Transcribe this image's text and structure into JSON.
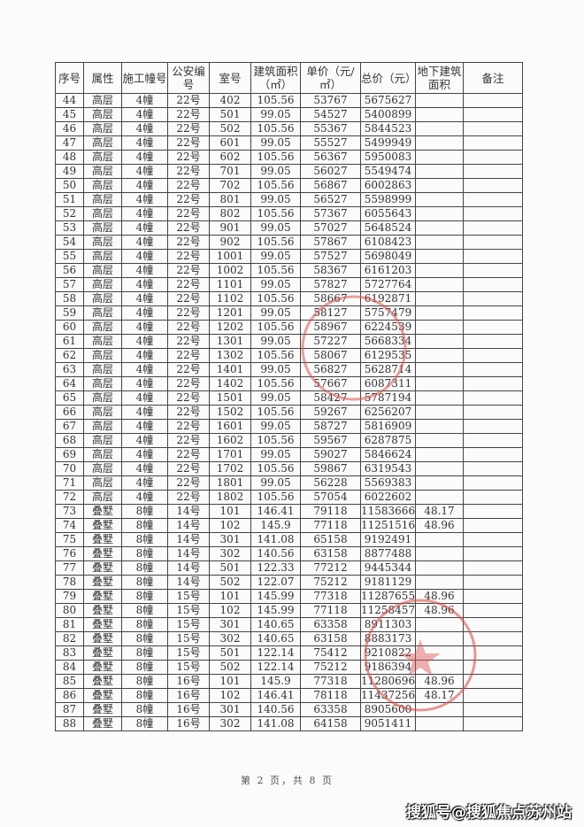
{
  "headers": [
    "序号",
    "属性",
    "施工幢号",
    "公安编号",
    "室号",
    "建筑面积（㎡）",
    "单价（元/㎡）",
    "总价（元）",
    "地下建筑面积",
    "备注"
  ],
  "rows": [
    [
      "44",
      "高层",
      "4幢",
      "22号",
      "402",
      "105.56",
      "53767",
      "5675627",
      "",
      ""
    ],
    [
      "45",
      "高层",
      "4幢",
      "22号",
      "501",
      "99.05",
      "54527",
      "5400899",
      "",
      ""
    ],
    [
      "46",
      "高层",
      "4幢",
      "22号",
      "502",
      "105.56",
      "55367",
      "5844523",
      "",
      ""
    ],
    [
      "47",
      "高层",
      "4幢",
      "22号",
      "601",
      "99.05",
      "55527",
      "5499949",
      "",
      ""
    ],
    [
      "48",
      "高层",
      "4幢",
      "22号",
      "602",
      "105.56",
      "56367",
      "5950083",
      "",
      ""
    ],
    [
      "49",
      "高层",
      "4幢",
      "22号",
      "701",
      "99.05",
      "56027",
      "5549474",
      "",
      ""
    ],
    [
      "50",
      "高层",
      "4幢",
      "22号",
      "702",
      "105.56",
      "56867",
      "6002863",
      "",
      ""
    ],
    [
      "51",
      "高层",
      "4幢",
      "22号",
      "801",
      "99.05",
      "56527",
      "5598999",
      "",
      ""
    ],
    [
      "52",
      "高层",
      "4幢",
      "22号",
      "802",
      "105.56",
      "57367",
      "6055643",
      "",
      ""
    ],
    [
      "53",
      "高层",
      "4幢",
      "22号",
      "901",
      "99.05",
      "57027",
      "5648524",
      "",
      ""
    ],
    [
      "54",
      "高层",
      "4幢",
      "22号",
      "902",
      "105.56",
      "57867",
      "6108423",
      "",
      ""
    ],
    [
      "55",
      "高层",
      "4幢",
      "22号",
      "1001",
      "99.05",
      "57527",
      "5698049",
      "",
      ""
    ],
    [
      "56",
      "高层",
      "4幢",
      "22号",
      "1002",
      "105.56",
      "58367",
      "6161203",
      "",
      ""
    ],
    [
      "57",
      "高层",
      "4幢",
      "22号",
      "1101",
      "99.05",
      "57827",
      "5727764",
      "",
      ""
    ],
    [
      "58",
      "高层",
      "4幢",
      "22号",
      "1102",
      "105.56",
      "58667",
      "6192871",
      "",
      ""
    ],
    [
      "59",
      "高层",
      "4幢",
      "22号",
      "1201",
      "99.05",
      "58127",
      "5757479",
      "",
      ""
    ],
    [
      "60",
      "高层",
      "4幢",
      "22号",
      "1202",
      "105.56",
      "58967",
      "6224539",
      "",
      ""
    ],
    [
      "61",
      "高层",
      "4幢",
      "22号",
      "1301",
      "99.05",
      "57227",
      "5668334",
      "",
      ""
    ],
    [
      "62",
      "高层",
      "4幢",
      "22号",
      "1302",
      "105.56",
      "58067",
      "6129535",
      "",
      ""
    ],
    [
      "63",
      "高层",
      "4幢",
      "22号",
      "1401",
      "99.05",
      "56827",
      "5628714",
      "",
      ""
    ],
    [
      "64",
      "高层",
      "4幢",
      "22号",
      "1402",
      "105.56",
      "57667",
      "6087311",
      "",
      ""
    ],
    [
      "65",
      "高层",
      "4幢",
      "22号",
      "1501",
      "99.05",
      "58427",
      "5787194",
      "",
      ""
    ],
    [
      "66",
      "高层",
      "4幢",
      "22号",
      "1502",
      "105.56",
      "59267",
      "6256207",
      "",
      ""
    ],
    [
      "67",
      "高层",
      "4幢",
      "22号",
      "1601",
      "99.05",
      "58727",
      "5816909",
      "",
      ""
    ],
    [
      "68",
      "高层",
      "4幢",
      "22号",
      "1602",
      "105.56",
      "59567",
      "6287875",
      "",
      ""
    ],
    [
      "69",
      "高层",
      "4幢",
      "22号",
      "1701",
      "99.05",
      "59027",
      "5846624",
      "",
      ""
    ],
    [
      "70",
      "高层",
      "4幢",
      "22号",
      "1702",
      "105.56",
      "59867",
      "6319543",
      "",
      ""
    ],
    [
      "71",
      "高层",
      "4幢",
      "22号",
      "1801",
      "99.05",
      "56228",
      "5569383",
      "",
      ""
    ],
    [
      "72",
      "高层",
      "4幢",
      "22号",
      "1802",
      "105.56",
      "57054",
      "6022602",
      "",
      ""
    ],
    [
      "73",
      "叠墅",
      "8幢",
      "14号",
      "101",
      "146.41",
      "79118",
      "11583666",
      "48.17",
      ""
    ],
    [
      "74",
      "叠墅",
      "8幢",
      "14号",
      "102",
      "145.9",
      "77118",
      "11251516",
      "48.96",
      ""
    ],
    [
      "75",
      "叠墅",
      "8幢",
      "14号",
      "301",
      "141.08",
      "65158",
      "9192491",
      "",
      ""
    ],
    [
      "76",
      "叠墅",
      "8幢",
      "14号",
      "302",
      "140.56",
      "63158",
      "8877488",
      "",
      ""
    ],
    [
      "77",
      "叠墅",
      "8幢",
      "14号",
      "501",
      "122.33",
      "77212",
      "9445344",
      "",
      ""
    ],
    [
      "78",
      "叠墅",
      "8幢",
      "14号",
      "502",
      "122.07",
      "75212",
      "9181129",
      "",
      ""
    ],
    [
      "79",
      "叠墅",
      "8幢",
      "15号",
      "101",
      "145.99",
      "77318",
      "11287655",
      "48.96",
      ""
    ],
    [
      "80",
      "叠墅",
      "8幢",
      "15号",
      "102",
      "145.99",
      "77118",
      "11258457",
      "48.96",
      ""
    ],
    [
      "81",
      "叠墅",
      "8幢",
      "15号",
      "301",
      "140.65",
      "63358",
      "8911303",
      "",
      ""
    ],
    [
      "82",
      "叠墅",
      "8幢",
      "15号",
      "302",
      "140.65",
      "63158",
      "8883173",
      "",
      ""
    ],
    [
      "83",
      "叠墅",
      "8幢",
      "15号",
      "501",
      "122.14",
      "75412",
      "9210822",
      "",
      ""
    ],
    [
      "84",
      "叠墅",
      "8幢",
      "15号",
      "502",
      "122.14",
      "75212",
      "9186394",
      "",
      ""
    ],
    [
      "85",
      "叠墅",
      "8幢",
      "16号",
      "101",
      "145.9",
      "77318",
      "11280696",
      "48.96",
      ""
    ],
    [
      "86",
      "叠墅",
      "8幢",
      "16号",
      "102",
      "146.41",
      "78118",
      "11437256",
      "48.17",
      ""
    ],
    [
      "87",
      "叠墅",
      "8幢",
      "16号",
      "301",
      "140.56",
      "63358",
      "8905600",
      "",
      ""
    ],
    [
      "88",
      "叠墅",
      "8幢",
      "16号",
      "302",
      "141.08",
      "64158",
      "9051411",
      "",
      ""
    ]
  ],
  "footer": "第 2 页，共 8 页",
  "watermark": "搜狐号@搜狐焦点苏州站",
  "stamp_color": "#d9534f"
}
